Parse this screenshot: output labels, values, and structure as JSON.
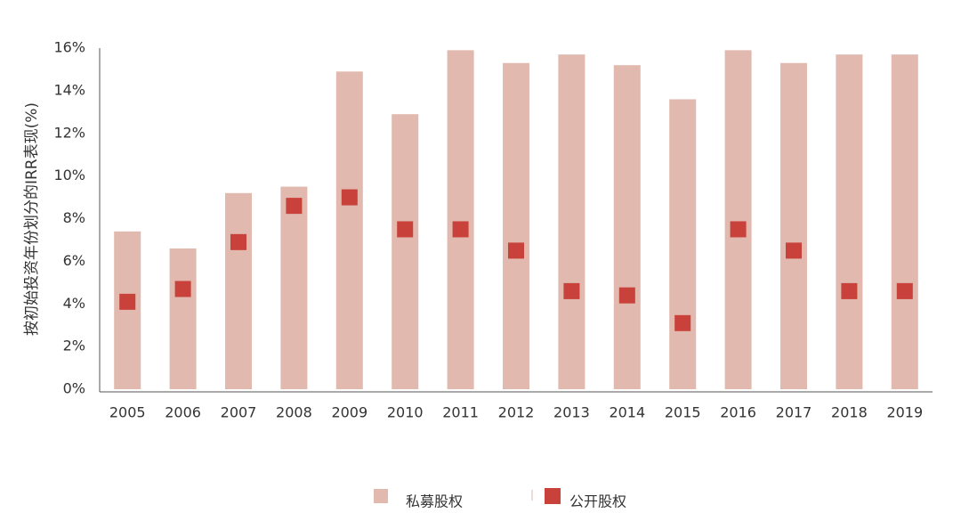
{
  "chart_data": {
    "type": "bar",
    "y_label": "按初始投资年份划分的IRR表现(%)",
    "categories": [
      "2005",
      "2006",
      "2007",
      "2008",
      "2009",
      "2010",
      "2011",
      "2012",
      "2013",
      "2014",
      "2015",
      "2016",
      "2017",
      "2018",
      "2019"
    ],
    "series": [
      {
        "name": "私募股权",
        "type": "bar",
        "color": "#e1b9af",
        "values": [
          7.4,
          6.6,
          9.2,
          9.5,
          14.9,
          12.9,
          15.9,
          15.3,
          15.7,
          15.2,
          13.6,
          15.9,
          15.3,
          15.7,
          15.7
        ]
      },
      {
        "name": "公开股权",
        "type": "scatter",
        "color": "#c8413b",
        "values": [
          4.1,
          4.7,
          6.9,
          8.6,
          9.0,
          7.5,
          7.5,
          6.5,
          4.6,
          4.4,
          3.1,
          7.5,
          6.5,
          4.6,
          4.6
        ]
      }
    ],
    "ylim": [
      0,
      16
    ],
    "yticks": [
      {
        "value": 0,
        "label": "0%"
      },
      {
        "value": 2,
        "label": "2%"
      },
      {
        "value": 4,
        "label": "4%"
      },
      {
        "value": 6,
        "label": "6%"
      },
      {
        "value": 8,
        "label": "8%"
      },
      {
        "value": 10,
        "label": "10%"
      },
      {
        "value": 12,
        "label": "12%"
      },
      {
        "value": 14,
        "label": "14%"
      },
      {
        "value": 16,
        "label": "16%"
      }
    ],
    "grid": false,
    "legend": "bottom"
  }
}
